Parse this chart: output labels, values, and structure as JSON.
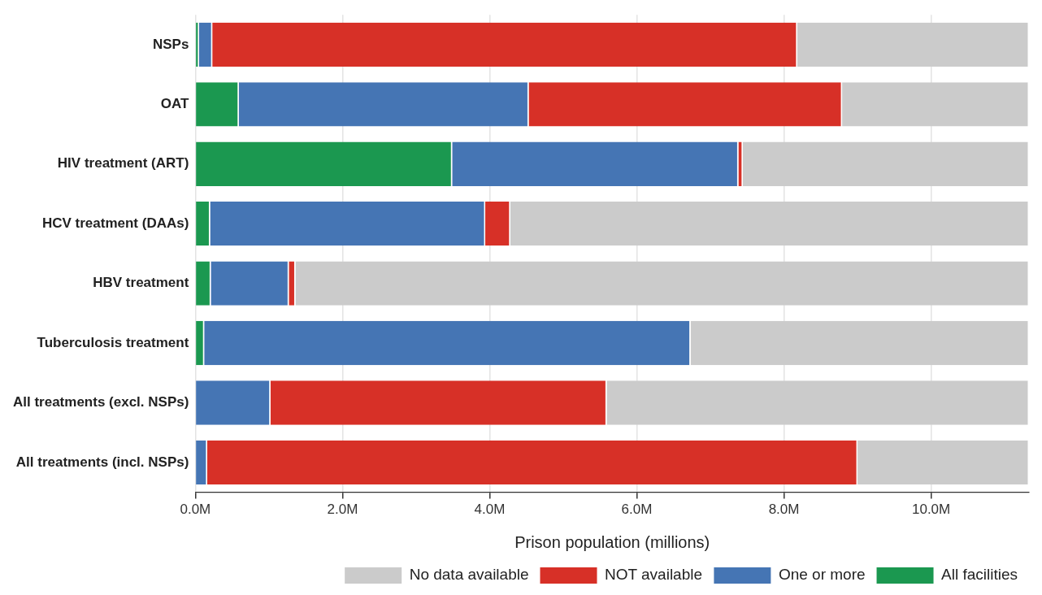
{
  "chart_data": {
    "type": "bar",
    "orientation": "horizontal",
    "stacked": true,
    "xlabel": "Prison population (millions)",
    "categories": [
      "NSPs",
      "OAT",
      "HIV treatment (ART)",
      "HCV treatment (DAAs)",
      "HBV treatment",
      "Tuberculosis treatment",
      "All treatments (excl. NSPs)",
      "All treatments (incl. NSPs)"
    ],
    "series": [
      {
        "name": "All facilities",
        "color": "#1b9850",
        "values": [
          0.05,
          0.59,
          3.49,
          0.2,
          0.21,
          0.12,
          null,
          null
        ]
      },
      {
        "name": "One or more",
        "color": "#4575b4",
        "values": [
          0.18,
          3.94,
          3.89,
          3.74,
          1.06,
          6.61,
          1.02,
          0.16
        ]
      },
      {
        "name": "NOT available",
        "color": "#d73027",
        "values": [
          7.95,
          4.26,
          0.06,
          0.34,
          0.09,
          null,
          4.57,
          8.84
        ]
      },
      {
        "name": "No data available",
        "color": "#cbcbcb",
        "values": [
          3.15,
          2.54,
          3.89,
          7.05,
          9.97,
          4.6,
          5.74,
          2.33
        ]
      }
    ],
    "xlim": [
      0,
      11.33
    ],
    "xticks": [
      {
        "value": 0,
        "label": "0.0M"
      },
      {
        "value": 2,
        "label": "2.0M"
      },
      {
        "value": 4,
        "label": "4.0M"
      },
      {
        "value": 6,
        "label": "6.0M"
      },
      {
        "value": 8,
        "label": "8.0M"
      },
      {
        "value": 10,
        "label": "10.0M"
      }
    ],
    "grid": "x",
    "legend": "bottom right"
  }
}
